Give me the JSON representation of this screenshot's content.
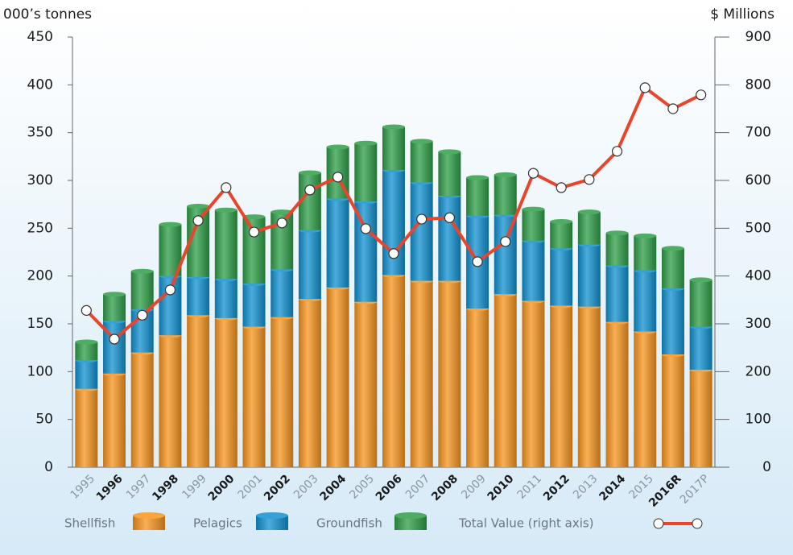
{
  "chart_data": {
    "type": "bar",
    "stacked": true,
    "y_label": "000’s tonnes",
    "y2_label": "$ Millions",
    "categories": [
      "1995",
      "1996",
      "1997",
      "1998",
      "1999",
      "2000",
      "2001",
      "2002",
      "2003",
      "2004",
      "2005",
      "2006",
      "2007",
      "2008",
      "2009",
      "2010",
      "2011",
      "2012",
      "2013",
      "2014",
      "2015",
      "2016R",
      "2017P"
    ],
    "series": [
      {
        "name": "Shellfish",
        "color": "#f7941d",
        "type": "bar",
        "values": [
          82,
          98,
          120,
          138,
          159,
          156,
          147,
          157,
          176,
          188,
          173,
          201,
          195,
          195,
          166,
          181,
          174,
          169,
          168,
          152,
          142,
          118,
          102
        ]
      },
      {
        "name": "Pelagics",
        "color": "#1090d0",
        "type": "bar",
        "values": [
          30,
          55,
          45,
          62,
          40,
          41,
          45,
          50,
          72,
          93,
          105,
          110,
          103,
          89,
          97,
          83,
          63,
          60,
          65,
          59,
          64,
          69,
          45
        ]
      },
      {
        "name": "Groundfish",
        "color": "#2e9e47",
        "type": "bar",
        "values": [
          19,
          28,
          40,
          54,
          74,
          72,
          70,
          60,
          60,
          54,
          61,
          45,
          43,
          46,
          40,
          42,
          33,
          28,
          34,
          34,
          36,
          42,
          49
        ]
      },
      {
        "name": "Total Value (right axis)",
        "color": "#e8452c",
        "type": "line",
        "axis": "y2",
        "values": [
          328,
          268,
          318,
          371,
          516,
          585,
          492,
          511,
          580,
          607,
          499,
          447,
          519,
          522,
          430,
          472,
          615,
          585,
          602,
          661,
          794,
          750,
          779
        ]
      }
    ],
    "ylim": [
      0,
      450
    ],
    "yticks": [
      0,
      50,
      100,
      150,
      200,
      250,
      300,
      350,
      400,
      450
    ],
    "y2lim": [
      0,
      900
    ],
    "y2ticks": [
      0,
      100,
      200,
      300,
      400,
      500,
      600,
      700,
      800,
      900
    ],
    "legend": "bottom"
  }
}
